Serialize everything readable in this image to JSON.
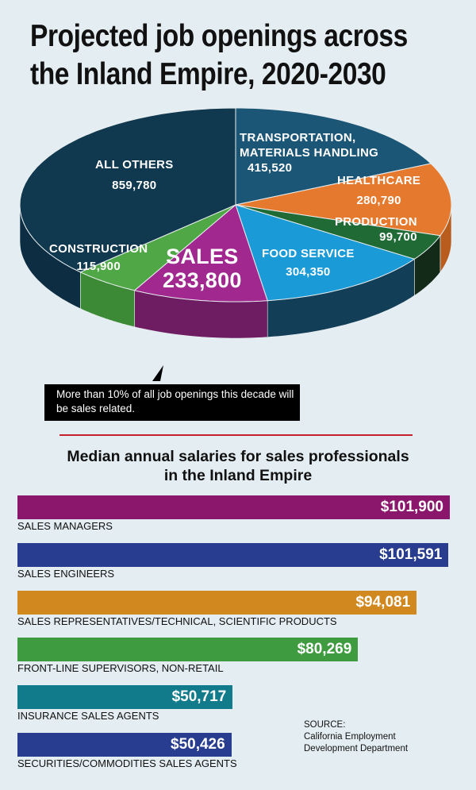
{
  "title": [
    "Projected job openings across",
    "the Inland Empire, 2020-2030"
  ],
  "chart_data": [
    {
      "type": "pie",
      "title": "Projected job openings across the Inland Empire, 2020-2030",
      "slices": [
        {
          "label": "TRANSPORTATION, MATERIALS HANDLING",
          "value": 415520,
          "display": "415,520",
          "color": "#1b5677",
          "side": "#123f58"
        },
        {
          "label": "HEALTHCARE",
          "value": 280790,
          "display": "280,790",
          "color": "#e57a2e",
          "side": "#b85d1e"
        },
        {
          "label": "PRODUCTION",
          "value": 99700,
          "display": "99,700",
          "color": "#1f6a35",
          "side": "#142a18"
        },
        {
          "label": "FOOD SERVICE",
          "value": 304350,
          "display": "304,350",
          "color": "#1a9ad6",
          "side": "#123e58"
        },
        {
          "label": "SALES",
          "value": 233800,
          "display": "233,800",
          "color": "#a0288f",
          "side": "#6e1d62"
        },
        {
          "label": "CONSTRUCTION",
          "value": 115900,
          "display": "115,900",
          "color": "#4fa845",
          "side": "#3d8a36"
        },
        {
          "label": "ALL OTHERS",
          "value": 859780,
          "display": "859,780",
          "color": "#10384f",
          "side": "#0d2e42"
        }
      ],
      "annotation": "More than 10% of all job openings this decade will be sales related."
    },
    {
      "type": "bar",
      "orientation": "horizontal",
      "title": "Median annual salaries for sales professionals in the Inland Empire",
      "categories": [
        "SALES MANAGERS",
        "SALES ENGINEERS",
        "SALES REPRESENTATIVES/TECHNICAL, SCIENTIFIC PRODUCTS",
        "FRONT-LINE SUPERVISORS, NON-RETAIL",
        "INSURANCE SALES AGENTS",
        "SECURITIES/COMMODITIES SALES AGENTS"
      ],
      "values": [
        101900,
        101591,
        94081,
        80269,
        50717,
        50426
      ],
      "value_labels": [
        "$101,900",
        "$101,591",
        "$94,081",
        "$80,269",
        "$50,717",
        "$50,426"
      ],
      "colors": [
        "#8b176d",
        "#283d8f",
        "#d1891f",
        "#3e9b40",
        "#117a8b",
        "#283d8f"
      ]
    }
  ],
  "subtitle": [
    "Median annual salaries for sales professionals",
    "in the Inland Empire"
  ],
  "source": [
    "SOURCE:",
    "California Employment",
    "Development Department"
  ]
}
